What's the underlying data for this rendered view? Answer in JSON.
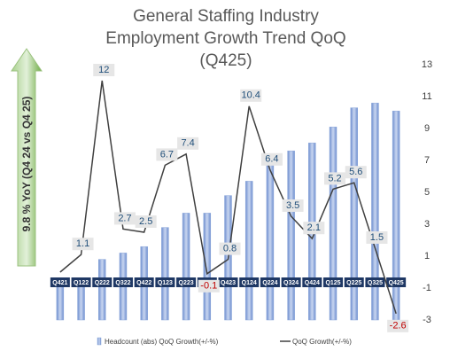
{
  "chart_data": {
    "type": "bar-line",
    "title": "General Staffing Industry Employment Growth Trend QoQ (Q425)",
    "annotation": "9.8  % YoY (Q4 24 vs Q4 25)",
    "categories": [
      "Q421",
      "Q122",
      "Q222",
      "Q322",
      "Q422",
      "Q123",
      "Q223",
      "Q323",
      "Q423",
      "Q124",
      "Q224",
      "Q324",
      "Q424",
      "Q125",
      "Q225",
      "Q325",
      "Q425"
    ],
    "series": [
      {
        "name": "Headcount (abs) QoQ Growth(+/-%)",
        "type": "bar",
        "color": "#8ea9db",
        "values": [
          -0.6,
          -0.4,
          0.8,
          1.2,
          1.6,
          2.8,
          3.7,
          3.7,
          4.8,
          5.7,
          6.9,
          7.6,
          8.1,
          9.1,
          10.3,
          10.6,
          10.1
        ]
      },
      {
        "name": "QoQ Growth(+/-%)",
        "type": "line",
        "color": "#404040",
        "values": [
          0,
          1.1,
          12,
          2.7,
          2.5,
          6.7,
          7.4,
          -0.1,
          0.8,
          10.4,
          6.4,
          3.5,
          2.1,
          5.2,
          5.6,
          1.5,
          -2.6
        ],
        "value_labels": [
          null,
          "1.1",
          "12",
          "2.7",
          "2.5",
          "6.7",
          "7.4",
          "-0.1",
          "0.8",
          "10.4",
          "6.4",
          "3.5",
          "2.1",
          "5.2",
          "5.6",
          "1.5",
          "-2.6"
        ]
      }
    ],
    "ylim": [
      -3,
      13
    ],
    "yticks": [
      -3,
      -1,
      1,
      3,
      5,
      7,
      9,
      11,
      13
    ],
    "grid": false
  }
}
